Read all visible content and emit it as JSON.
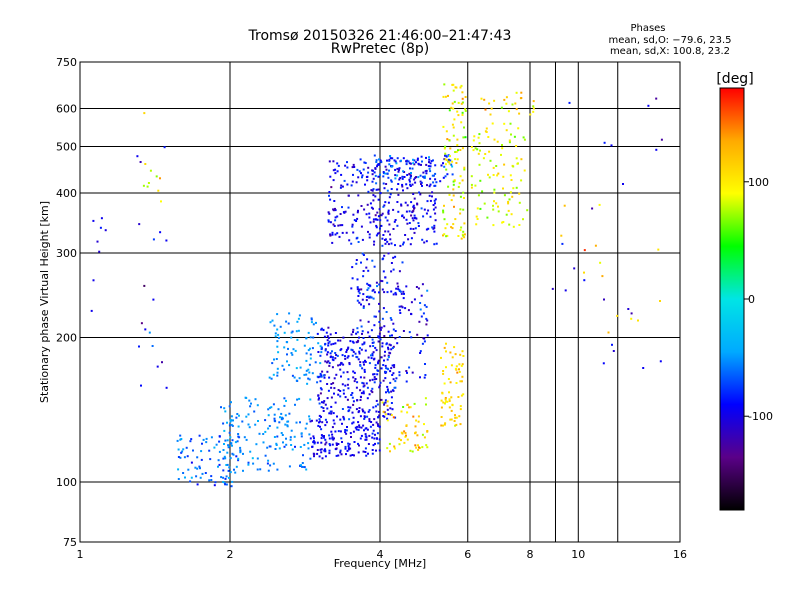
{
  "chart_data": {
    "type": "scatter",
    "title": "Tromsø 20150326 21:46:00–21:47:43",
    "subtitle": "RwPretec (8p)",
    "xlabel": "Frequency [MHz]",
    "ylabel": "Stationary phase Virtual Height [km]",
    "x_scale": "log",
    "y_scale": "log",
    "xlim": [
      1,
      16
    ],
    "ylim": [
      75,
      750
    ],
    "x_ticks": [
      {
        "v": 1,
        "label": "1"
      },
      {
        "v": 2,
        "label": "2"
      },
      {
        "v": 4,
        "label": "4"
      },
      {
        "v": 6,
        "label": "6"
      },
      {
        "v": 8,
        "label": "8"
      },
      {
        "v": 10,
        "label": "10"
      },
      {
        "v": 16,
        "label": "16"
      }
    ],
    "x_minor_gridlines": [
      9,
      12
    ],
    "y_ticks": [
      {
        "v": 75,
        "label": "75"
      },
      {
        "v": 100,
        "label": "100"
      },
      {
        "v": 200,
        "label": "200"
      },
      {
        "v": 300,
        "label": "300"
      },
      {
        "v": 400,
        "label": "400"
      },
      {
        "v": 500,
        "label": "500"
      },
      {
        "v": 600,
        "label": "600"
      },
      {
        "v": 750,
        "label": "750"
      }
    ],
    "grid": true,
    "stats": {
      "title": "Phases",
      "line1": "mean, sd,O: −79.6, 23.5",
      "line2": "mean, sd,X: 100.8, 23.2"
    },
    "colorbar": {
      "label": "[deg]",
      "range": [
        -180,
        180
      ],
      "ticks": [
        {
          "v": 100,
          "label": "100"
        },
        {
          "v": 0,
          "label": "0"
        },
        {
          "v": -100,
          "label": "-100"
        }
      ],
      "colors": [
        "#000000",
        "#5a0088",
        "#0000ff",
        "#00aaff",
        "#00e5e5",
        "#00ff00",
        "#ffff00",
        "#ffaa00",
        "#ff0000"
      ]
    },
    "series": [
      {
        "x_range": [
          1.55,
          2.1
        ],
        "y_range": [
          98,
          125
        ],
        "phase": -60,
        "spread": 20,
        "n": 90
      },
      {
        "x_range": [
          1.9,
          2.9
        ],
        "y_range": [
          105,
          150
        ],
        "phase": -55,
        "spread": 15,
        "n": 160
      },
      {
        "x_range": [
          2.4,
          3.05
        ],
        "y_range": [
          160,
          225
        ],
        "phase": -50,
        "spread": 15,
        "n": 90
      },
      {
        "x_range": [
          2.9,
          4.0
        ],
        "y_range": [
          112,
          135
        ],
        "phase": -95,
        "spread": 15,
        "n": 160
      },
      {
        "x_range": [
          3.0,
          4.3
        ],
        "y_range": [
          135,
          210
        ],
        "phase": -95,
        "spread": 20,
        "n": 330
      },
      {
        "x_range": [
          3.6,
          5.0
        ],
        "y_range": [
          160,
          260
        ],
        "phase": -90,
        "spread": 25,
        "n": 140
      },
      {
        "x_range": [
          4.0,
          5.0
        ],
        "y_range": [
          115,
          150
        ],
        "phase": 110,
        "spread": 30,
        "n": 60
      },
      {
        "x_range": [
          5.3,
          5.9
        ],
        "y_range": [
          130,
          195
        ],
        "phase": 115,
        "spread": 20,
        "n": 70
      },
      {
        "x_range": [
          3.15,
          5.2
        ],
        "y_range": [
          310,
          470
        ],
        "phase": -95,
        "spread": 20,
        "n": 340
      },
      {
        "x_range": [
          3.9,
          5.6
        ],
        "y_range": [
          420,
          480
        ],
        "phase": -75,
        "spread": 30,
        "n": 90
      },
      {
        "x_range": [
          5.35,
          5.95
        ],
        "y_range": [
          320,
          680
        ],
        "phase": 95,
        "spread": 30,
        "n": 110
      },
      {
        "x_range": [
          6.1,
          7.9
        ],
        "y_range": [
          340,
          560
        ],
        "phase": 90,
        "spread": 25,
        "n": 100
      },
      {
        "x_range": [
          6.3,
          8.2
        ],
        "y_range": [
          580,
          650
        ],
        "phase": 115,
        "spread": 30,
        "n": 25
      },
      {
        "x_range": [
          3.5,
          4.5
        ],
        "y_range": [
          230,
          300
        ],
        "phase": -90,
        "spread": 20,
        "n": 60
      },
      {
        "x_range": [
          1.05,
          1.15
        ],
        "y_range": [
          200,
          400
        ],
        "phase": -100,
        "spread": 10,
        "n": 8
      },
      {
        "x_range": [
          1.3,
          1.5
        ],
        "y_range": [
          140,
          520
        ],
        "phase": -100,
        "spread": 30,
        "n": 18
      },
      {
        "x_range": [
          1.3,
          1.5
        ],
        "y_range": [
          380,
          600
        ],
        "phase": 100,
        "spread": 30,
        "n": 10
      },
      {
        "x_range": [
          8.5,
          14.8
        ],
        "y_range": [
          170,
          650
        ],
        "phase": -100,
        "spread": 20,
        "n": 22
      },
      {
        "x_range": [
          8.5,
          14.8
        ],
        "y_range": [
          200,
          420
        ],
        "phase": 110,
        "spread": 30,
        "n": 14
      }
    ]
  }
}
